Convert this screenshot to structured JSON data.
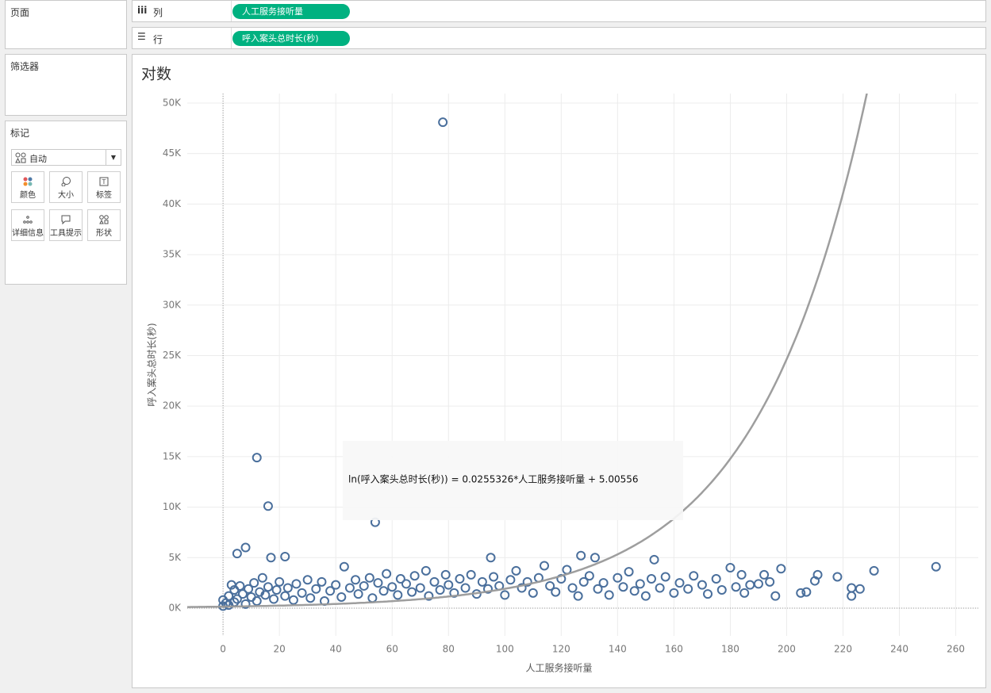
{
  "ui": {
    "pages_title": "页面",
    "filters_title": "筛选器",
    "marks_title": "标记",
    "mark_type": "自动",
    "mark_buttons": [
      "颜色",
      "大小",
      "标签",
      "详细信息",
      "工具提示",
      "形状"
    ],
    "columns_label": "列",
    "rows_label": "行",
    "columns_pill": "人工服务接听量",
    "rows_pill": "呼入案头总时长(秒)"
  },
  "chart_data": {
    "type": "scatter",
    "title": "对数",
    "x_label": "人工服务接听量",
    "y_label": "呼入案头总时长(秒)",
    "color": "#4a6f9c",
    "grid": true,
    "xlim": [
      -12.7,
      268
    ],
    "ylim": [
      -2750,
      50940
    ],
    "xticks": [
      0,
      20,
      40,
      60,
      80,
      100,
      120,
      140,
      160,
      180,
      200,
      220,
      240,
      260
    ],
    "yticks": [
      {
        "value": 0,
        "label": "0K"
      },
      {
        "value": 5000,
        "label": "5K"
      },
      {
        "value": 10000,
        "label": "10K"
      },
      {
        "value": 15000,
        "label": "15K"
      },
      {
        "value": 20000,
        "label": "20K"
      },
      {
        "value": 25000,
        "label": "25K"
      },
      {
        "value": 30000,
        "label": "30K"
      },
      {
        "value": 35000,
        "label": "35K"
      },
      {
        "value": 40000,
        "label": "40K"
      },
      {
        "value": 45000,
        "label": "45K"
      },
      {
        "value": 50000,
        "label": "50K"
      }
    ],
    "trend": {
      "label": "ln(呼入案头总时长(秒)) = 0.0255326*人工服务接听量 + 5.00556",
      "slope": 0.0255326,
      "intercept": 5.00556,
      "color": "#999999"
    },
    "x": [
      0,
      0,
      1,
      2,
      2,
      3,
      4,
      4,
      5,
      6,
      7,
      8,
      9,
      10,
      11,
      12,
      13,
      14,
      15,
      16,
      18,
      19,
      20,
      22,
      23,
      25,
      26,
      28,
      30,
      31,
      33,
      35,
      36,
      38,
      40,
      42,
      43,
      45,
      47,
      48,
      50,
      52,
      53,
      55,
      57,
      58,
      60,
      62,
      63,
      65,
      67,
      68,
      70,
      72,
      73,
      75,
      77,
      79,
      80,
      82,
      84,
      86,
      88,
      90,
      92,
      94,
      96,
      98,
      100,
      102,
      104,
      106,
      108,
      110,
      112,
      114,
      116,
      118,
      120,
      122,
      124,
      126,
      128,
      130,
      133,
      135,
      137,
      140,
      142,
      144,
      146,
      148,
      150,
      152,
      155,
      157,
      160,
      162,
      165,
      167,
      170,
      172,
      175,
      177,
      182,
      185,
      190,
      78,
      12,
      16,
      54,
      5,
      8,
      17,
      22,
      95,
      132,
      127,
      153,
      253,
      231,
      198,
      218,
      223,
      226,
      223,
      205,
      207,
      210,
      211,
      192,
      194,
      196,
      180,
      184,
      187
    ],
    "values": [
      200,
      800,
      500,
      1200,
      300,
      2300,
      1800,
      600,
      900,
      2200,
      1400,
      400,
      1900,
      1100,
      2500,
      700,
      1600,
      3000,
      1300,
      2100,
      900,
      1800,
      2600,
      1200,
      2000,
      800,
      2400,
      1500,
      2800,
      1000,
      1900,
      2600,
      700,
      1700,
      2300,
      1100,
      4100,
      2000,
      2800,
      1400,
      2200,
      3000,
      1000,
      2500,
      1700,
      3400,
      2100,
      1300,
      2900,
      2400,
      1600,
      3200,
      2000,
      3700,
      1200,
      2600,
      1800,
      3300,
      2300,
      1500,
      2900,
      2000,
      3300,
      1400,
      2600,
      1900,
      3100,
      2200,
      1300,
      2800,
      3700,
      2000,
      2600,
      1500,
      3000,
      4200,
      2200,
      1600,
      2900,
      3800,
      2000,
      1200,
      2600,
      3200,
      1900,
      2500,
      1300,
      3000,
      2100,
      3600,
      1700,
      2400,
      1200,
      2900,
      2000,
      3100,
      1500,
      2500,
      1900,
      3200,
      2300,
      1400,
      2900,
      1800,
      2100,
      1500,
      2400,
      48100,
      14900,
      10100,
      8500,
      5400,
      6000,
      5000,
      5100,
      5000,
      5000,
      5200,
      4800,
      4100,
      3700,
      3900,
      3100,
      2000,
      1900,
      1200,
      1500,
      1600,
      2700,
      3300,
      3300,
      2600,
      1200,
      4000,
      3300,
      2300
    ]
  }
}
